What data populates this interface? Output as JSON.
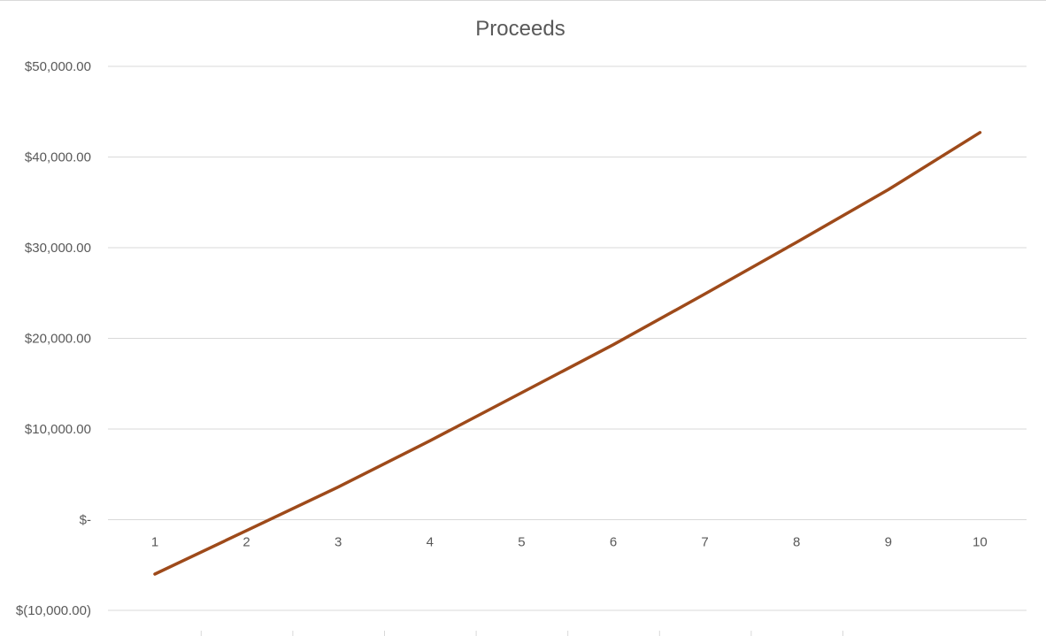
{
  "chart_data": {
    "type": "line",
    "title": "Proceeds",
    "xlabel": "",
    "ylabel": "",
    "categories": [
      "1",
      "2",
      "3",
      "4",
      "5",
      "6",
      "7",
      "8",
      "9",
      "10"
    ],
    "series": [
      {
        "values": [
          -6000,
          -1200,
          3600,
          8700,
          14000,
          19300,
          24900,
          30600,
          36400,
          42700
        ],
        "color": "#9e4a1a"
      }
    ],
    "ylim": [
      -10000,
      50000
    ],
    "yticks": [
      50000,
      40000,
      30000,
      20000,
      10000,
      0,
      -10000
    ],
    "ytick_labels": [
      "$50,000.00",
      "$40,000.00",
      "$30,000.00",
      "$20,000.00",
      "$10,000.00",
      "$-",
      "$(10,000.00)"
    ],
    "grid": true,
    "legend": "none",
    "gridline_color": "#d9d9d9",
    "text_color": "#595959"
  }
}
